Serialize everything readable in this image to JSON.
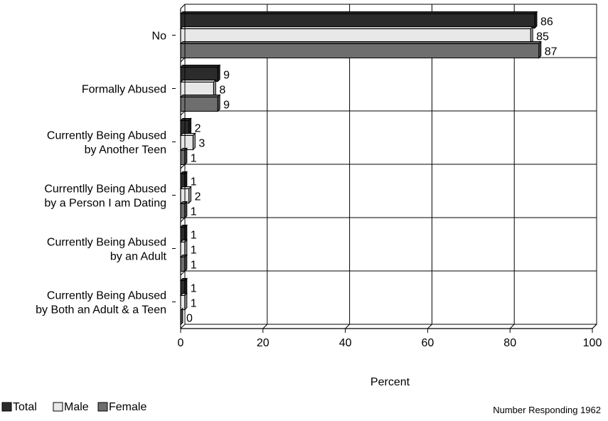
{
  "chart_data": {
    "type": "bar",
    "orientation": "horizontal",
    "categories": [
      [
        "No"
      ],
      [
        "Formally Abused"
      ],
      [
        "Currently Being Abused",
        "by Another Teen"
      ],
      [
        "Currentlly Being Abused",
        "by a Person I am Dating"
      ],
      [
        "Currently Being Abused",
        "by an Adult"
      ],
      [
        "Currently Being Abused",
        "by Both an Adult & a Teen"
      ]
    ],
    "series": [
      {
        "name": "Total",
        "color": "#2b2b2b",
        "values": [
          86,
          9,
          2,
          1,
          1,
          1
        ]
      },
      {
        "name": "Male",
        "color": "#e8e8e8",
        "values": [
          85,
          8,
          3,
          2,
          1,
          1
        ]
      },
      {
        "name": "Female",
        "color": "#6e6e6e",
        "values": [
          87,
          9,
          1,
          1,
          1,
          0
        ]
      }
    ],
    "xlabel": "Percent",
    "xlim": [
      0,
      100
    ],
    "xticks": [
      0,
      20,
      40,
      60,
      80,
      100
    ],
    "grid": true,
    "legend_position": "bottom-left",
    "note": "Number Responding 1962"
  }
}
